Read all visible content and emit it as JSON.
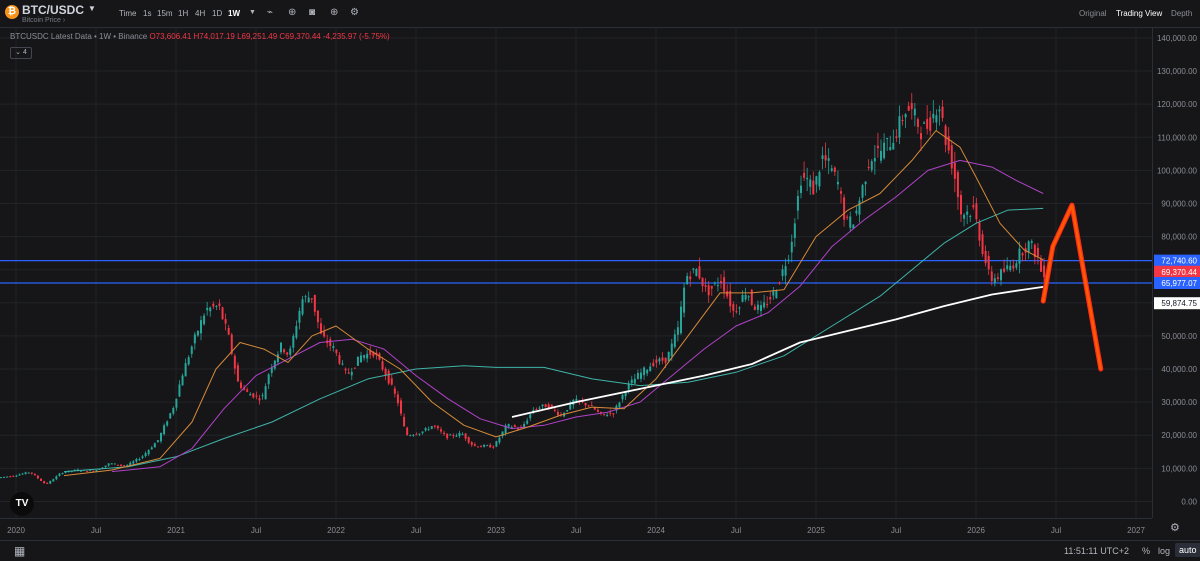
{
  "header": {
    "symbol": "BTC/USDC",
    "subtitle": "Bitcoin Price",
    "timeframes": [
      "Time",
      "1s",
      "15m",
      "1H",
      "4H",
      "1D",
      "1W"
    ],
    "active_timeframe": "1W",
    "icons": [
      "chevron-down-icon",
      "bar-style-icon",
      "indicators-icon",
      "camera-icon",
      "add-icon",
      "settings-icon"
    ],
    "views": [
      "Original",
      "Trading View",
      "Depth"
    ],
    "active_view": "Trading View"
  },
  "legend": {
    "title": "BTCUSDC Latest Data • 1W • Binance",
    "open": "O73,606.41",
    "high": "H74,017.19",
    "low": "L69,251.49",
    "close": "C69,370.44",
    "change": "-4,235.97 (-5.75%)",
    "indicator_count": "4"
  },
  "chart_data": {
    "type": "line",
    "y_tick_labels": [
      "0.00",
      "10,000.00",
      "20,000.00",
      "30,000.00",
      "40,000.00",
      "50,000.00",
      "60,000.00",
      "70,000.00",
      "80,000.00",
      "90,000.00",
      "100,000.00",
      "110,000.00",
      "120,000.00",
      "130,000.00",
      "140,000.00"
    ],
    "ylim": [
      -5000,
      143000
    ],
    "x_tick_labels": [
      {
        "label": "2020",
        "t": 2020.0
      },
      {
        "label": "Jul",
        "t": 2020.5
      },
      {
        "label": "2021",
        "t": 2021.0
      },
      {
        "label": "Jul",
        "t": 2021.5
      },
      {
        "label": "2022",
        "t": 2022.0
      },
      {
        "label": "Jul",
        "t": 2022.5
      },
      {
        "label": "2023",
        "t": 2023.0
      },
      {
        "label": "Jul",
        "t": 2023.5
      },
      {
        "label": "2024",
        "t": 2024.0
      },
      {
        "label": "Jul",
        "t": 2024.5
      },
      {
        "label": "2025",
        "t": 2025.0
      },
      {
        "label": "Jul",
        "t": 2025.5
      },
      {
        "label": "2026",
        "t": 2026.0
      },
      {
        "label": "Jul",
        "t": 2026.5
      },
      {
        "label": "2027",
        "t": 2027.0
      }
    ],
    "xlim": [
      2019.9,
      2027.1
    ],
    "price": [
      [
        2019.9,
        7200
      ],
      [
        2020.0,
        7800
      ],
      [
        2020.1,
        8900
      ],
      [
        2020.2,
        5100
      ],
      [
        2020.3,
        8800
      ],
      [
        2020.4,
        9500
      ],
      [
        2020.5,
        9200
      ],
      [
        2020.6,
        11500
      ],
      [
        2020.7,
        10700
      ],
      [
        2020.8,
        13500
      ],
      [
        2020.9,
        18500
      ],
      [
        2021.0,
        29000
      ],
      [
        2021.05,
        38000
      ],
      [
        2021.12,
        48000
      ],
      [
        2021.2,
        58000
      ],
      [
        2021.28,
        59000
      ],
      [
        2021.34,
        50000
      ],
      [
        2021.4,
        36000
      ],
      [
        2021.45,
        33000
      ],
      [
        2021.55,
        31000
      ],
      [
        2021.6,
        40000
      ],
      [
        2021.67,
        47000
      ],
      [
        2021.72,
        44000
      ],
      [
        2021.8,
        61000
      ],
      [
        2021.86,
        62000
      ],
      [
        2021.92,
        50000
      ],
      [
        2022.0,
        46000
      ],
      [
        2022.08,
        38000
      ],
      [
        2022.17,
        44000
      ],
      [
        2022.25,
        45000
      ],
      [
        2022.33,
        38000
      ],
      [
        2022.4,
        30000
      ],
      [
        2022.45,
        20000
      ],
      [
        2022.55,
        21000
      ],
      [
        2022.62,
        23000
      ],
      [
        2022.7,
        19500
      ],
      [
        2022.8,
        20500
      ],
      [
        2022.87,
        16800
      ],
      [
        2022.95,
        16700
      ],
      [
        2023.0,
        16600
      ],
      [
        2023.08,
        23000
      ],
      [
        2023.17,
        22000
      ],
      [
        2023.25,
        28000
      ],
      [
        2023.33,
        29000
      ],
      [
        2023.42,
        26000
      ],
      [
        2023.5,
        30500
      ],
      [
        2023.6,
        29000
      ],
      [
        2023.67,
        26000
      ],
      [
        2023.75,
        27000
      ],
      [
        2023.83,
        34500
      ],
      [
        2023.9,
        38000
      ],
      [
        2024.0,
        42000
      ],
      [
        2024.08,
        43000
      ],
      [
        2024.15,
        52000
      ],
      [
        2024.2,
        68000
      ],
      [
        2024.27,
        70000
      ],
      [
        2024.33,
        63000
      ],
      [
        2024.42,
        67000
      ],
      [
        2024.5,
        57000
      ],
      [
        2024.58,
        64000
      ],
      [
        2024.62,
        59000
      ],
      [
        2024.67,
        58000
      ],
      [
        2024.75,
        63000
      ],
      [
        2024.8,
        69000
      ],
      [
        2024.85,
        76000
      ],
      [
        2024.92,
        98000
      ],
      [
        2024.96,
        97000
      ],
      [
        2025.0,
        94000
      ],
      [
        2025.05,
        104000
      ],
      [
        2025.1,
        101000
      ],
      [
        2025.15,
        96000
      ],
      [
        2025.2,
        84000
      ],
      [
        2025.25,
        85000
      ],
      [
        2025.3,
        94000
      ],
      [
        2025.35,
        104000
      ],
      [
        2025.42,
        106000
      ],
      [
        2025.5,
        110000
      ],
      [
        2025.58,
        119000
      ],
      [
        2025.62,
        117000
      ],
      [
        2025.67,
        112000
      ],
      [
        2025.72,
        114000
      ],
      [
        2025.78,
        121000
      ],
      [
        2025.82,
        110000
      ],
      [
        2025.87,
        101000
      ],
      [
        2025.92,
        87000
      ],
      [
        2026.0,
        88000
      ],
      [
        2026.05,
        77000
      ],
      [
        2026.1,
        67000
      ],
      [
        2026.15,
        68000
      ],
      [
        2026.2,
        70000
      ],
      [
        2026.25,
        72000
      ],
      [
        2026.3,
        76000
      ],
      [
        2026.35,
        78000
      ],
      [
        2026.4,
        73600
      ],
      [
        2026.42,
        69370
      ]
    ],
    "ma_orange": [
      [
        2020.3,
        7800
      ],
      [
        2020.6,
        9500
      ],
      [
        2020.9,
        13000
      ],
      [
        2021.1,
        24000
      ],
      [
        2021.25,
        40000
      ],
      [
        2021.4,
        48000
      ],
      [
        2021.55,
        46000
      ],
      [
        2021.7,
        42000
      ],
      [
        2021.85,
        50000
      ],
      [
        2022.0,
        53000
      ],
      [
        2022.2,
        46000
      ],
      [
        2022.4,
        40000
      ],
      [
        2022.6,
        30000
      ],
      [
        2022.8,
        23000
      ],
      [
        2023.0,
        19500
      ],
      [
        2023.2,
        22500
      ],
      [
        2023.4,
        26000
      ],
      [
        2023.6,
        28500
      ],
      [
        2023.8,
        28000
      ],
      [
        2024.0,
        37000
      ],
      [
        2024.2,
        50000
      ],
      [
        2024.4,
        63000
      ],
      [
        2024.6,
        63000
      ],
      [
        2024.8,
        64000
      ],
      [
        2025.0,
        80000
      ],
      [
        2025.2,
        88000
      ],
      [
        2025.4,
        93000
      ],
      [
        2025.6,
        103000
      ],
      [
        2025.75,
        112000
      ],
      [
        2025.9,
        107000
      ],
      [
        2026.0,
        98000
      ],
      [
        2026.15,
        84000
      ],
      [
        2026.3,
        76000
      ],
      [
        2026.42,
        73000
      ]
    ],
    "ma_purple": [
      [
        2020.6,
        9000
      ],
      [
        2020.9,
        10500
      ],
      [
        2021.1,
        16000
      ],
      [
        2021.3,
        28000
      ],
      [
        2021.5,
        38000
      ],
      [
        2021.7,
        43000
      ],
      [
        2021.9,
        48000
      ],
      [
        2022.1,
        49000
      ],
      [
        2022.3,
        46000
      ],
      [
        2022.5,
        38000
      ],
      [
        2022.7,
        31000
      ],
      [
        2022.9,
        25000
      ],
      [
        2023.1,
        22000
      ],
      [
        2023.3,
        23000
      ],
      [
        2023.5,
        25500
      ],
      [
        2023.7,
        27000
      ],
      [
        2023.9,
        30000
      ],
      [
        2024.1,
        38000
      ],
      [
        2024.3,
        46000
      ],
      [
        2024.5,
        53000
      ],
      [
        2024.7,
        57000
      ],
      [
        2024.9,
        65000
      ],
      [
        2025.1,
        77000
      ],
      [
        2025.3,
        85000
      ],
      [
        2025.5,
        92000
      ],
      [
        2025.7,
        100000
      ],
      [
        2025.9,
        103000
      ],
      [
        2026.1,
        101000
      ],
      [
        2026.25,
        97000
      ],
      [
        2026.42,
        93000
      ]
    ],
    "ma_teal": [
      [
        2020.3,
        9000
      ],
      [
        2020.7,
        10500
      ],
      [
        2021.0,
        13500
      ],
      [
        2021.3,
        19000
      ],
      [
        2021.6,
        24000
      ],
      [
        2021.9,
        31000
      ],
      [
        2022.2,
        37000
      ],
      [
        2022.5,
        40000
      ],
      [
        2022.8,
        41000
      ],
      [
        2023.0,
        40500
      ],
      [
        2023.3,
        40500
      ],
      [
        2023.6,
        37000
      ],
      [
        2023.9,
        35000
      ],
      [
        2024.2,
        36000
      ],
      [
        2024.5,
        39000
      ],
      [
        2024.8,
        44000
      ],
      [
        2025.1,
        53000
      ],
      [
        2025.4,
        62000
      ],
      [
        2025.6,
        70000
      ],
      [
        2025.8,
        78000
      ],
      [
        2026.0,
        84000
      ],
      [
        2026.2,
        88000
      ],
      [
        2026.42,
        88500
      ]
    ],
    "ma_white": [
      [
        2023.1,
        25500
      ],
      [
        2023.5,
        30000
      ],
      [
        2023.9,
        34000
      ],
      [
        2024.3,
        38000
      ],
      [
        2024.6,
        41500
      ],
      [
        2024.9,
        48000
      ],
      [
        2025.2,
        51500
      ],
      [
        2025.5,
        55000
      ],
      [
        2025.8,
        59000
      ],
      [
        2026.1,
        62500
      ],
      [
        2026.3,
        64000
      ],
      [
        2026.42,
        64800
      ]
    ],
    "projection": [
      [
        2026.42,
        60500
      ],
      [
        2026.48,
        77000
      ],
      [
        2026.6,
        89500
      ],
      [
        2026.78,
        40000
      ]
    ],
    "horizontal_lines": [
      72740.6,
      65977.07
    ],
    "price_labels": [
      {
        "value": 72740.6,
        "label": "72,740.60",
        "bg": "#2962ff"
      },
      {
        "value": 69370.44,
        "label": "69,370.44",
        "bg": "#f23645"
      },
      {
        "value": 65977.07,
        "label": "65,977.07",
        "bg": "#2962ff"
      },
      {
        "value": 59874.75,
        "label": "59,874.75",
        "bg": "#ffffff"
      }
    ]
  },
  "footer": {
    "time": "11:51:11 UTC+2",
    "percent": "%",
    "log": "log",
    "auto": "auto"
  },
  "colors": {
    "up": "#26a69a",
    "down": "#f23645",
    "ma_orange": "#d58a39",
    "ma_purple": "#b042c8",
    "ma_teal": "#3fb3a8",
    "ma_white": "#ffffff",
    "level": "#2962ff",
    "projection": "#ff5a00"
  }
}
